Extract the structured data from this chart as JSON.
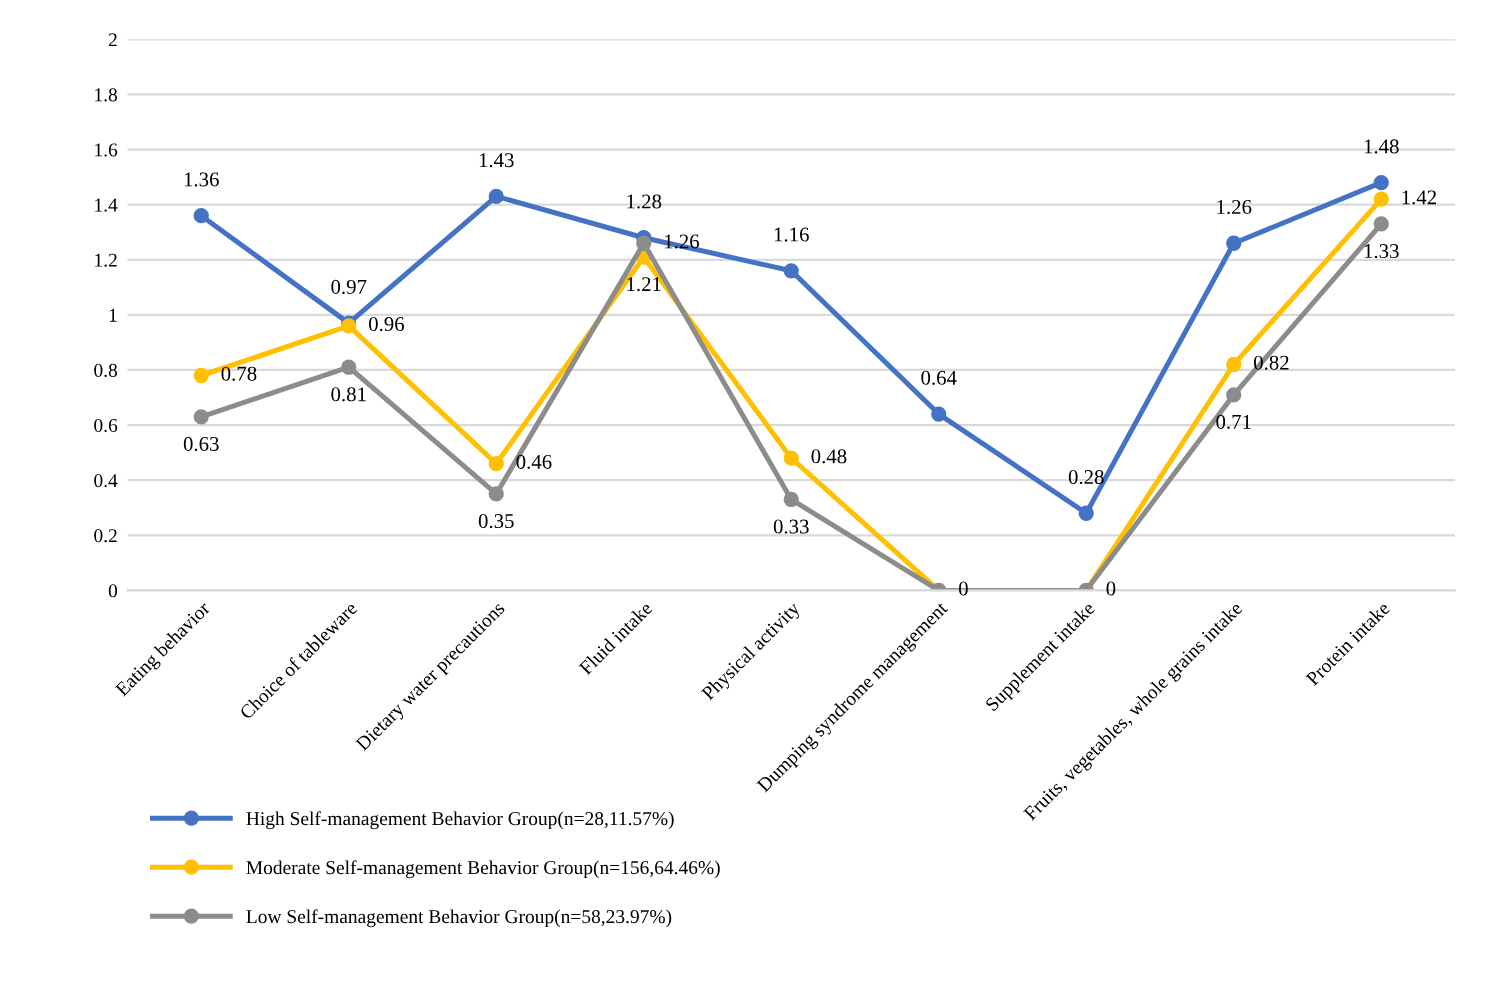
{
  "chart_data": {
    "type": "line",
    "categories": [
      "Eating behavior",
      "Choice of tableware",
      "Dietary water precautions",
      "Fluid intake",
      "Physical activity",
      "Dumping syndrome management",
      "Supplement intake",
      "Fruits, vegetables, whole grains intake",
      "Protein intake"
    ],
    "series": [
      {
        "name": "High Self-management Behavior Group(n=28,11.57%)",
        "color": "#4472c4",
        "values": [
          1.36,
          0.97,
          1.43,
          1.28,
          1.16,
          0.64,
          0.28,
          1.26,
          1.48
        ],
        "value_labels": [
          "1.36",
          "0.97",
          "1.43",
          "1.28",
          "1.16",
          "0.64",
          "0.28",
          "1.26",
          "1.48"
        ]
      },
      {
        "name": "Moderate Self-management Behavior Group(n=156,64.46%)",
        "color": "#ffc000",
        "values": [
          0.78,
          0.96,
          0.46,
          1.21,
          0.48,
          0,
          0,
          0.82,
          1.42
        ],
        "value_labels": [
          "0.78",
          "0.96",
          "0.46",
          "1.21",
          "0.48",
          "0",
          "0",
          "0.82",
          "1.42"
        ]
      },
      {
        "name": "Low Self-management Behavior Group(n=58,23.97%)",
        "color": "#8c8c8c",
        "values": [
          0.63,
          0.81,
          0.35,
          1.26,
          0.33,
          0,
          0,
          0.71,
          1.33
        ],
        "value_labels": [
          "0.63",
          "0.81",
          "0.35",
          "1.26",
          "0.33",
          null,
          null,
          "0.71",
          "1.33"
        ]
      }
    ],
    "ylim": [
      0,
      2
    ],
    "yticks": [
      0,
      0.2,
      0.4,
      0.6,
      0.8,
      1,
      1.2,
      1.4,
      1.6,
      1.8,
      2
    ],
    "grid": "y",
    "legend": "bottom left",
    "marker": "circle",
    "line_style": "solid"
  }
}
